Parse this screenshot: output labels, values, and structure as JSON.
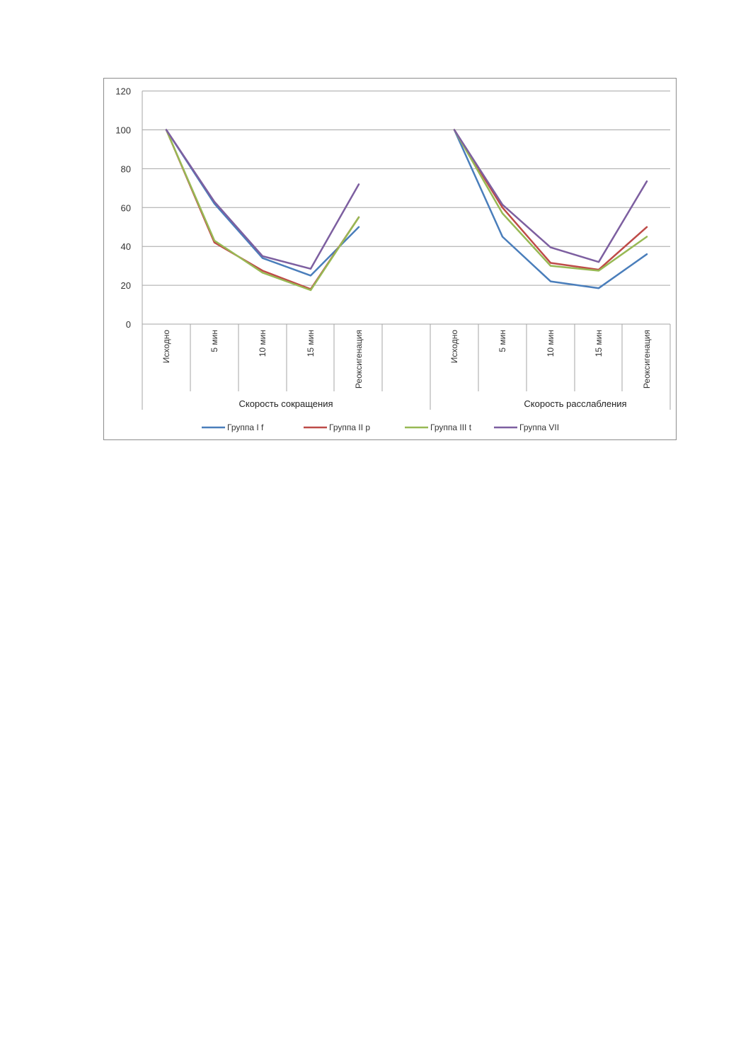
{
  "chart_data": {
    "type": "line",
    "title": "",
    "xlabel": "",
    "ylabel": "",
    "ylim": [
      0,
      120
    ],
    "yticks": [
      "0",
      "20",
      "40",
      "60",
      "80",
      "100",
      "120"
    ],
    "grid": true,
    "legend_position": "bottom",
    "groups": [
      {
        "label": "Скорость сокращения",
        "categories": [
          "Исходно",
          "5 мин",
          "10 мин",
          "15 мин",
          "Реоксигенация"
        ]
      },
      {
        "label": "Скорость расслабления",
        "categories": [
          "Исходно",
          "5 мин",
          "10 мин",
          "15 мин",
          "Реоксигенация"
        ]
      }
    ],
    "series": [
      {
        "name": "Группа I f",
        "color": "#4a7ebb",
        "values": [
          [
            100,
            62,
            34,
            25,
            50
          ],
          [
            100,
            45,
            22,
            18.5,
            36
          ]
        ]
      },
      {
        "name": "Группа II p",
        "color": "#be4b48",
        "values": [
          [
            100,
            42,
            27.5,
            18,
            55
          ],
          [
            100,
            60,
            31.5,
            28,
            50
          ]
        ]
      },
      {
        "name": "Группа III t",
        "color": "#98b954",
        "values": [
          [
            100,
            43,
            26.5,
            17.5,
            55
          ],
          [
            100,
            57,
            30,
            27.5,
            45
          ]
        ]
      },
      {
        "name": "Группа VII",
        "color": "#7d5fa0",
        "values": [
          [
            100,
            63,
            35,
            28.5,
            72
          ],
          [
            100,
            61.5,
            39.5,
            32,
            73.5
          ]
        ]
      }
    ]
  }
}
